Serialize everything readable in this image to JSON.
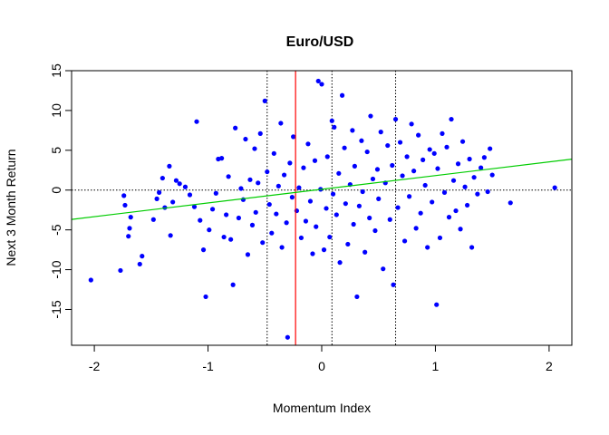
{
  "chart_data": {
    "type": "scatter",
    "title": "Euro/USD",
    "xlabel": "Momentum Index",
    "ylabel": "Next 3 Month Return",
    "xlim": [
      -2.2,
      2.2
    ],
    "ylim": [
      -19.5,
      15
    ],
    "x_ticks": [
      -2,
      -1,
      0,
      1,
      2
    ],
    "y_ticks": [
      -15,
      -10,
      -5,
      0,
      5,
      10,
      15
    ],
    "grid": false,
    "colors": {
      "points": "#0000ff",
      "regression": "#00cc00",
      "vline": "#ff0000",
      "highlight": "#ff0000",
      "reference": "#000000"
    },
    "reference_lines": {
      "vertical_dotted": [
        -0.48,
        0.09,
        0.65
      ],
      "horizontal_dotted": [
        0
      ]
    },
    "vertical_line": {
      "x": -0.23
    },
    "regression_line": {
      "intercept": 0.1,
      "slope": 1.72
    },
    "highlight_points": [
      {
        "x": -0.23,
        "y": 4.3
      },
      {
        "x": -0.23,
        "y": -5.2
      }
    ],
    "points": [
      [
        -2.03,
        -11.3
      ],
      [
        -1.77,
        -10.1
      ],
      [
        -1.74,
        -0.7
      ],
      [
        -1.73,
        -1.9
      ],
      [
        -1.7,
        -5.8
      ],
      [
        -1.69,
        -4.8
      ],
      [
        -1.68,
        -3.4
      ],
      [
        -1.6,
        -9.3
      ],
      [
        -1.58,
        -8.3
      ],
      [
        -1.48,
        -3.7
      ],
      [
        -1.45,
        -1.1
      ],
      [
        -1.43,
        -0.3
      ],
      [
        -1.4,
        1.5
      ],
      [
        -1.38,
        -2.2
      ],
      [
        -1.34,
        3.0
      ],
      [
        -1.33,
        -5.7
      ],
      [
        -1.31,
        -1.5
      ],
      [
        -1.28,
        1.2
      ],
      [
        -1.25,
        0.8
      ],
      [
        -1.2,
        0.4
      ],
      [
        -1.16,
        -0.6
      ],
      [
        -1.12,
        -2.1
      ],
      [
        -1.1,
        8.6
      ],
      [
        -1.07,
        -3.8
      ],
      [
        -1.04,
        -7.5
      ],
      [
        -1.02,
        -13.4
      ],
      [
        -0.99,
        -5.0
      ],
      [
        -0.96,
        -2.4
      ],
      [
        -0.93,
        -0.4
      ],
      [
        -0.91,
        3.9
      ],
      [
        -0.88,
        4.0
      ],
      [
        -0.86,
        -5.9
      ],
      [
        -0.84,
        -3.1
      ],
      [
        -0.82,
        1.7
      ],
      [
        -0.8,
        -6.2
      ],
      [
        -0.78,
        -11.9
      ],
      [
        -0.76,
        7.8
      ],
      [
        -0.73,
        -3.5
      ],
      [
        -0.71,
        0.2
      ],
      [
        -0.69,
        -1.2
      ],
      [
        -0.67,
        6.4
      ],
      [
        -0.65,
        -8.1
      ],
      [
        -0.63,
        1.3
      ],
      [
        -0.61,
        -4.4
      ],
      [
        -0.59,
        5.2
      ],
      [
        -0.58,
        -2.8
      ],
      [
        -0.56,
        0.9
      ],
      [
        -0.54,
        7.1
      ],
      [
        -0.52,
        -6.6
      ],
      [
        -0.5,
        11.2
      ],
      [
        -0.48,
        2.3
      ],
      [
        -0.46,
        -1.8
      ],
      [
        -0.44,
        -5.4
      ],
      [
        -0.42,
        4.6
      ],
      [
        -0.4,
        -3.0
      ],
      [
        -0.38,
        0.5
      ],
      [
        -0.36,
        8.4
      ],
      [
        -0.35,
        -7.2
      ],
      [
        -0.33,
        1.9
      ],
      [
        -0.31,
        -4.1
      ],
      [
        -0.3,
        -18.5
      ],
      [
        -0.28,
        3.4
      ],
      [
        -0.26,
        -0.9
      ],
      [
        -0.25,
        6.7
      ],
      [
        -0.22,
        -2.6
      ],
      [
        -0.2,
        0.3
      ],
      [
        -0.18,
        -6.0
      ],
      [
        -0.16,
        2.8
      ],
      [
        -0.14,
        -3.9
      ],
      [
        -0.12,
        5.8
      ],
      [
        -0.1,
        -1.4
      ],
      [
        -0.08,
        -8.0
      ],
      [
        -0.06,
        3.7
      ],
      [
        -0.05,
        -4.6
      ],
      [
        -0.03,
        13.7
      ],
      [
        -0.01,
        0.1
      ],
      [
        0.0,
        13.3
      ],
      [
        0.02,
        -7.5
      ],
      [
        0.04,
        -2.3
      ],
      [
        0.05,
        4.2
      ],
      [
        0.07,
        -5.9
      ],
      [
        0.09,
        8.7
      ],
      [
        0.1,
        -0.5
      ],
      [
        0.11,
        7.9
      ],
      [
        0.13,
        -3.1
      ],
      [
        0.15,
        2.1
      ],
      [
        0.16,
        -9.1
      ],
      [
        0.18,
        11.9
      ],
      [
        0.2,
        5.3
      ],
      [
        0.21,
        -1.7
      ],
      [
        0.23,
        -6.8
      ],
      [
        0.25,
        0.7
      ],
      [
        0.27,
        7.5
      ],
      [
        0.28,
        -4.3
      ],
      [
        0.29,
        3.0
      ],
      [
        0.31,
        -13.4
      ],
      [
        0.33,
        -2.0
      ],
      [
        0.35,
        6.2
      ],
      [
        0.36,
        -0.2
      ],
      [
        0.38,
        -7.8
      ],
      [
        0.4,
        4.8
      ],
      [
        0.42,
        -3.5
      ],
      [
        0.43,
        9.3
      ],
      [
        0.45,
        1.4
      ],
      [
        0.47,
        -5.1
      ],
      [
        0.49,
        2.6
      ],
      [
        0.5,
        -1.1
      ],
      [
        0.52,
        7.3
      ],
      [
        0.54,
        -9.9
      ],
      [
        0.56,
        0.9
      ],
      [
        0.58,
        5.6
      ],
      [
        0.6,
        -3.7
      ],
      [
        0.62,
        3.1
      ],
      [
        0.63,
        -11.9
      ],
      [
        0.65,
        8.9
      ],
      [
        0.67,
        -2.2
      ],
      [
        0.69,
        6.0
      ],
      [
        0.71,
        1.8
      ],
      [
        0.73,
        -6.4
      ],
      [
        0.75,
        4.2
      ],
      [
        0.77,
        -0.8
      ],
      [
        0.79,
        8.3
      ],
      [
        0.81,
        2.4
      ],
      [
        0.83,
        -4.8
      ],
      [
        0.85,
        6.9
      ],
      [
        0.87,
        -2.9
      ],
      [
        0.89,
        3.8
      ],
      [
        0.91,
        0.6
      ],
      [
        0.93,
        -7.2
      ],
      [
        0.95,
        5.1
      ],
      [
        0.97,
        -1.5
      ],
      [
        0.99,
        4.6
      ],
      [
        1.01,
        -14.4
      ],
      [
        1.02,
        2.7
      ],
      [
        1.04,
        -6.0
      ],
      [
        1.06,
        7.1
      ],
      [
        1.08,
        -0.3
      ],
      [
        1.1,
        5.4
      ],
      [
        1.12,
        -3.4
      ],
      [
        1.14,
        8.9
      ],
      [
        1.16,
        1.2
      ],
      [
        1.18,
        -2.6
      ],
      [
        1.2,
        3.3
      ],
      [
        1.22,
        -4.9
      ],
      [
        1.24,
        6.1
      ],
      [
        1.26,
        0.4
      ],
      [
        1.28,
        -1.9
      ],
      [
        1.3,
        3.9
      ],
      [
        1.32,
        -7.2
      ],
      [
        1.34,
        1.6
      ],
      [
        1.37,
        -0.5
      ],
      [
        1.4,
        2.8
      ],
      [
        1.43,
        4.1
      ],
      [
        1.46,
        -0.2
      ],
      [
        1.48,
        5.2
      ],
      [
        1.5,
        1.9
      ],
      [
        1.66,
        -1.6
      ],
      [
        2.05,
        0.3
      ]
    ]
  }
}
